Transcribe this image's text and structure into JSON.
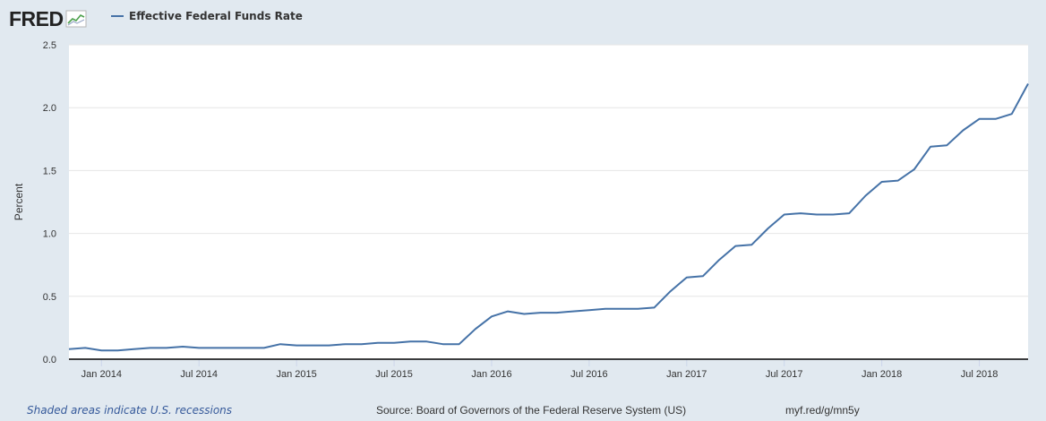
{
  "header": {
    "logo_text": "FRED",
    "legend_label": "Effective Federal Funds Rate"
  },
  "footer": {
    "recession_note": "Shaded areas indicate U.S. recessions",
    "source": "Source: Board of Governors of the Federal Reserve System (US)",
    "short_url": "myf.red/g/mn5y"
  },
  "colors": {
    "series": "#4572a7",
    "page_background": "#e1e9f0",
    "plot_background": "#ffffff",
    "gridline": "#e6e6e6",
    "note_link": "#35599a"
  },
  "icons": {
    "logo_graph": "line-graph-icon"
  },
  "chart_data": {
    "type": "line",
    "title": "",
    "xlabel": "",
    "ylabel": "Percent",
    "ylim": [
      0,
      2.5
    ],
    "yticks": [
      "0.0",
      "0.5",
      "1.0",
      "1.5",
      "2.0",
      "2.5"
    ],
    "xticks": [
      "Jan 2014",
      "Jul 2014",
      "Jan 2015",
      "Jul 2015",
      "Jan 2016",
      "Jul 2016",
      "Jan 2017",
      "Jul 2017",
      "Jan 2018",
      "Jul 2018"
    ],
    "xrange": [
      "2013-11",
      "2018-10"
    ],
    "grid": true,
    "legend_position": "top-left",
    "series": [
      {
        "name": "Effective Federal Funds Rate",
        "x": [
          "2013-11",
          "2013-12",
          "2014-01",
          "2014-02",
          "2014-03",
          "2014-04",
          "2014-05",
          "2014-06",
          "2014-07",
          "2014-08",
          "2014-09",
          "2014-10",
          "2014-11",
          "2014-12",
          "2015-01",
          "2015-02",
          "2015-03",
          "2015-04",
          "2015-05",
          "2015-06",
          "2015-07",
          "2015-08",
          "2015-09",
          "2015-10",
          "2015-11",
          "2015-12",
          "2016-01",
          "2016-02",
          "2016-03",
          "2016-04",
          "2016-05",
          "2016-06",
          "2016-07",
          "2016-08",
          "2016-09",
          "2016-10",
          "2016-11",
          "2016-12",
          "2017-01",
          "2017-02",
          "2017-03",
          "2017-04",
          "2017-05",
          "2017-06",
          "2017-07",
          "2017-08",
          "2017-09",
          "2017-10",
          "2017-11",
          "2017-12",
          "2018-01",
          "2018-02",
          "2018-03",
          "2018-04",
          "2018-05",
          "2018-06",
          "2018-07",
          "2018-08",
          "2018-09",
          "2018-10"
        ],
        "values": [
          0.08,
          0.09,
          0.07,
          0.07,
          0.08,
          0.09,
          0.09,
          0.1,
          0.09,
          0.09,
          0.09,
          0.09,
          0.09,
          0.12,
          0.11,
          0.11,
          0.11,
          0.12,
          0.12,
          0.13,
          0.13,
          0.14,
          0.14,
          0.12,
          0.12,
          0.24,
          0.34,
          0.38,
          0.36,
          0.37,
          0.37,
          0.38,
          0.39,
          0.4,
          0.4,
          0.4,
          0.41,
          0.54,
          0.65,
          0.66,
          0.79,
          0.9,
          0.91,
          1.04,
          1.15,
          1.16,
          1.15,
          1.15,
          1.16,
          1.3,
          1.41,
          1.42,
          1.51,
          1.69,
          1.7,
          1.82,
          1.91,
          1.91,
          1.95,
          2.19
        ]
      }
    ]
  }
}
